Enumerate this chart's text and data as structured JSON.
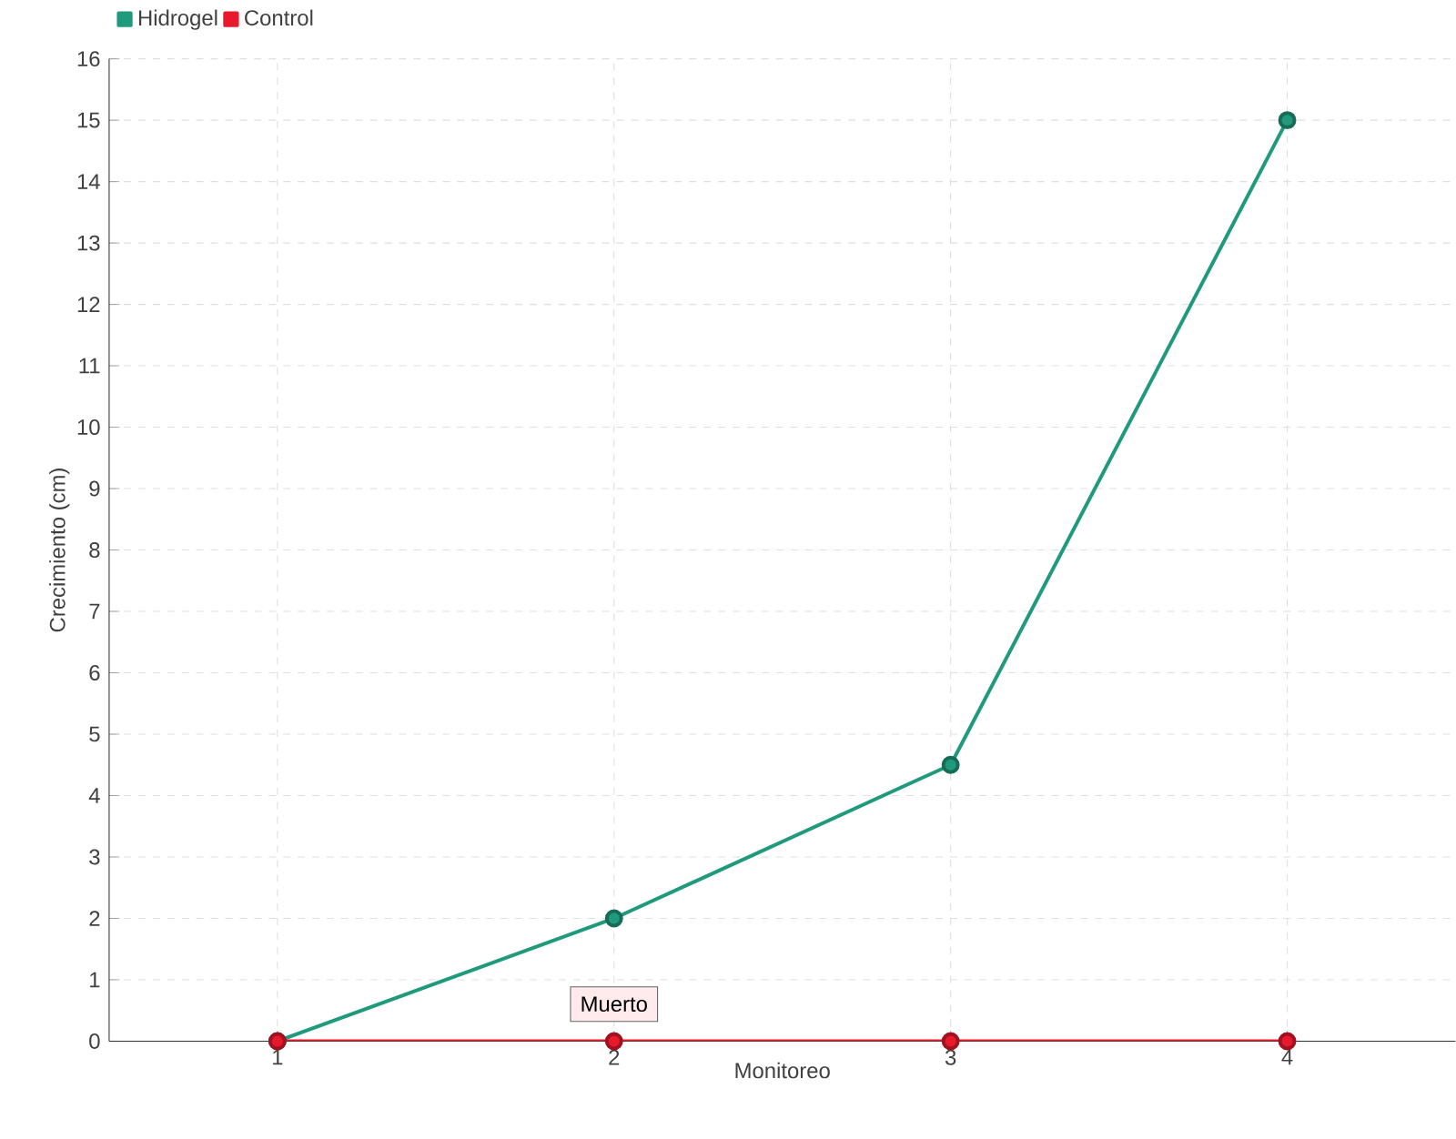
{
  "chart_data": {
    "type": "line",
    "xlabel": "Monitoreo",
    "ylabel": "Crecimiento (cm)",
    "x": [
      1,
      2,
      3,
      4
    ],
    "series": [
      {
        "name": "Hidrogel",
        "color": "#1f9a7c",
        "values": [
          0,
          2,
          4.5,
          15
        ]
      },
      {
        "name": "Control",
        "color": "#e8192c",
        "values": [
          0,
          0,
          0,
          0
        ]
      }
    ],
    "xlim": [
      0.5,
      4.5
    ],
    "xticks": [
      1,
      2,
      3,
      4
    ],
    "ylim": [
      0,
      16
    ],
    "yticks": [
      0,
      1,
      2,
      3,
      4,
      5,
      6,
      7,
      8,
      9,
      10,
      11,
      12,
      13,
      14,
      15,
      16
    ],
    "grid": true,
    "legend": "top left",
    "marker": "circle",
    "line_style": "solid",
    "annotations": [
      {
        "text": "Muerto",
        "x": 2,
        "y": 0
      }
    ]
  }
}
